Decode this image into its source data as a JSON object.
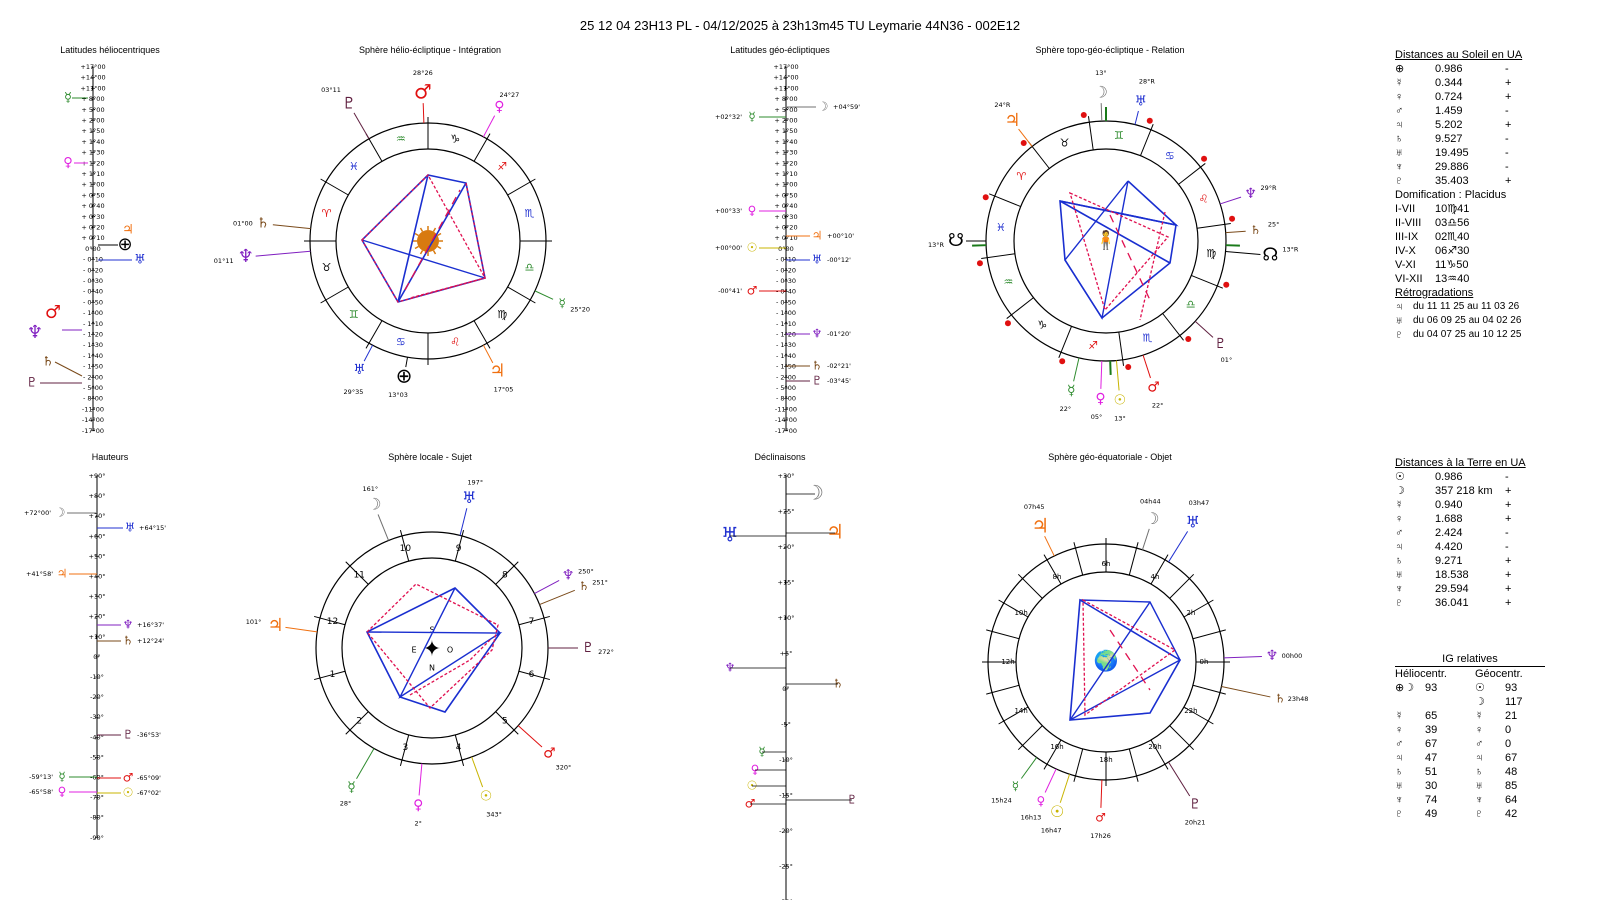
{
  "title": "25 12 04 23H13 PL   -  04/12/2025 à 23h13m45 TU  Leymarie  44N36 - 002E12",
  "panels": {
    "p1": "Latitudes héliocentriques",
    "p2": "Sphère hélio-écliptique - Intégration",
    "p3": "Latitudes géo-écliptiques",
    "p4": "Sphère topo-géo-écliptique - Relation",
    "p5": "Hauteurs",
    "p6": "Sphère locale - Sujet",
    "p7": "Déclinaisons",
    "p8": "Sphère géo-équatoriale - Objet"
  },
  "lat_scale": [
    "+17°00",
    "+14°00",
    "+11°00",
    "+ 8°00",
    "+ 5°00",
    "+ 2°00",
    "+ 1°50",
    "+ 1°40",
    "+ 1°30",
    "+ 1°20",
    "+ 1°10",
    "+ 1°00",
    "+ 0°50",
    "+ 0°40",
    "+ 0°30",
    "+ 0°20",
    "+ 0°10",
    "0°00",
    "- 0°10",
    "- 0°20",
    "- 0°30",
    "- 0°40",
    "- 0°50",
    "- 1°00",
    "- 1°10",
    "- 1°20",
    "- 1°30",
    "- 1°40",
    "- 1°50",
    "- 2°00",
    "- 5°00",
    "- 8°00",
    "-11°00",
    "-14°00",
    "-17°00"
  ],
  "haut_scale": [
    "+90°",
    "+80°",
    "+70°",
    "+60°",
    "+50°",
    "+40°",
    "+30°",
    "+20°",
    "+10°",
    "0°",
    "-10°",
    "-20°",
    "-30°",
    "-40°",
    "-50°",
    "-60°",
    "-70°",
    "-80°",
    "-90°"
  ],
  "decl_scale": [
    "+30°",
    "+25°",
    "+20°",
    "+15°",
    "+10°",
    "+5°",
    "0°",
    "-5°",
    "-10°",
    "-15°",
    "-20°",
    "-25°",
    "-30°"
  ],
  "geo_lat_labels": {
    "mercury": "+02°32'",
    "moon": "+04°59'",
    "venus": "+00°33'",
    "jupiter": "+00°10'",
    "sun": "+00°00'",
    "uranus": "-00°12'",
    "mars": "-00°41'",
    "neptune": "-01°20'",
    "saturn": "-02°21'",
    "pluto": "-03°45'"
  },
  "helio_labels": {
    "pluto": "03°11",
    "mars": "28°26",
    "venus": "24°27",
    "saturn": "01°00",
    "neptune": "01°11",
    "mercury": "25°20",
    "uranus": "29°35",
    "earth": "13°03",
    "jupiter": "17°05"
  },
  "topo_labels": {
    "moon": "13°",
    "uranus": "28°R",
    "jupiter": "24°R",
    "neptune": "29°R",
    "saturn": "25°",
    "node_s": "13°R",
    "node_n": "13°R",
    "pluto": "01°",
    "mercury": "22°",
    "venus": "05°",
    "sun": "13°",
    "mars": "22°"
  },
  "haut_labels": {
    "moon": "+72°00'",
    "uranus": "+64°15'",
    "jupiter": "+41°58'",
    "neptune": "+16°37'",
    "saturn": "+12°24'",
    "pluto": "-36°53'",
    "mercury": "-59°13'",
    "mars": "-65°09'",
    "venus": "-65°58'",
    "sun": "-67°02'"
  },
  "local_labels": {
    "moon": "161°",
    "uranus": "197°",
    "jupiter": "101°",
    "neptune": "250°",
    "saturn": "251°",
    "pluto": "272°",
    "mars": "320°",
    "mercury": "28°",
    "venus": "2°",
    "sun": "343°"
  },
  "equat_labels": {
    "jupiter": "07h45",
    "moon": "04h44",
    "uranus": "03h47",
    "neptune": "00h00",
    "saturn": "23h48",
    "mercury": "15h24",
    "venus": "16h13",
    "sun": "16h47",
    "mars": "17h26",
    "pluto": "20h21"
  },
  "compass": {
    "s": "S",
    "e": "E",
    "o": "O",
    "n": "N"
  },
  "hours_local": [
    "10",
    "9",
    "8",
    "11",
    "7",
    "12",
    "6",
    "1",
    "5",
    "2",
    "3",
    "4"
  ],
  "hours_equat": [
    "6h",
    "4h",
    "8h",
    "2h",
    "10h",
    "0h",
    "12h",
    "22h",
    "14h",
    "20h",
    "16h",
    "18h"
  ],
  "dist_sun": {
    "title": "Distances au Soleil en UA",
    "rows": [
      {
        "sym": "⊕",
        "v": "0.986",
        "s": "-"
      },
      {
        "sym": "☿",
        "v": "0.344",
        "s": "+"
      },
      {
        "sym": "♀",
        "v": "0.724",
        "s": "+"
      },
      {
        "sym": "♂",
        "v": "1.459",
        "s": "-"
      },
      {
        "sym": "♃",
        "v": "5.202",
        "s": "+"
      },
      {
        "sym": "♄",
        "v": "9.527",
        "s": "-"
      },
      {
        "sym": "♅",
        "v": "19.495",
        "s": "-"
      },
      {
        "sym": "♆",
        "v": "29.886",
        "s": "-"
      },
      {
        "sym": "♇",
        "v": "35.403",
        "s": "+"
      }
    ]
  },
  "domif": {
    "title": "Domification : Placidus",
    "rows": [
      {
        "k": "I-VII",
        "v": "10♍41"
      },
      {
        "k": "II-VIII",
        "v": "03♎56"
      },
      {
        "k": "III-IX",
        "v": "02♏40"
      },
      {
        "k": "IV-X",
        "v": "06♐30"
      },
      {
        "k": "V-XI",
        "v": "11♑50"
      },
      {
        "k": "VI-XII",
        "v": "13♒40"
      }
    ]
  },
  "retro": {
    "title": "Rétrogradations",
    "rows": [
      {
        "sym": "♃",
        "v": "du 11 11 25 au 11 03 26"
      },
      {
        "sym": "♅",
        "v": "du 06 09 25 au 04 02 26"
      },
      {
        "sym": "♇",
        "v": "du 04 07 25 au 10 12 25"
      }
    ]
  },
  "dist_earth": {
    "title": "Distances à la Terre en UA",
    "rows": [
      {
        "sym": "☉",
        "v": "0.986",
        "s": "-"
      },
      {
        "sym": "☽",
        "v": "357 218 km",
        "s": "+"
      },
      {
        "sym": "☿",
        "v": "0.940",
        "s": "+"
      },
      {
        "sym": "♀",
        "v": "1.688",
        "s": "+"
      },
      {
        "sym": "♂",
        "v": "2.424",
        "s": "-"
      },
      {
        "sym": "♃",
        "v": "4.420",
        "s": "-"
      },
      {
        "sym": "♄",
        "v": "9.271",
        "s": "+"
      },
      {
        "sym": "♅",
        "v": "18.538",
        "s": "+"
      },
      {
        "sym": "♆",
        "v": "29.594",
        "s": "+"
      },
      {
        "sym": "♇",
        "v": "36.041",
        "s": "+"
      }
    ]
  },
  "ig": {
    "title": "IG relatives",
    "col1": "Héliocentr.",
    "col2": "Géocentr.",
    "rows": [
      {
        "s1": "⊕☽",
        "v1": "93",
        "s2": "☉",
        "v2": "93"
      },
      {
        "s1": "",
        "v1": "",
        "s2": "☽",
        "v2": "117"
      },
      {
        "s1": "☿",
        "v1": "65",
        "s2": "☿",
        "v2": "21"
      },
      {
        "s1": "♀",
        "v1": "39",
        "s2": "♀",
        "v2": "0"
      },
      {
        "s1": "♂",
        "v1": "67",
        "s2": "♂",
        "v2": "0"
      },
      {
        "s1": "♃",
        "v1": "47",
        "s2": "♃",
        "v2": "67"
      },
      {
        "s1": "♄",
        "v1": "51",
        "s2": "♄",
        "v2": "48"
      },
      {
        "s1": "♅",
        "v1": "30",
        "s2": "♅",
        "v2": "85"
      },
      {
        "s1": "♆",
        "v1": "74",
        "s2": "♆",
        "v2": "64"
      },
      {
        "s1": "♇",
        "v1": "49",
        "s2": "♇",
        "v2": "42"
      }
    ]
  },
  "glyphs": {
    "sun": "☉",
    "moon": "☽",
    "mercury": "☿",
    "venus": "♀",
    "earth": "⊕",
    "mars": "♂",
    "jupiter": "♃",
    "saturn": "♄",
    "uranus": "♅",
    "neptune": "♆",
    "pluto": "♇",
    "node_n": "☊",
    "node_s": "☋",
    "aries": "♈",
    "taurus": "♉",
    "gemini": "♊",
    "cancer": "♋",
    "leo": "♌",
    "virgo": "♍",
    "libra": "♎",
    "scorpio": "♏",
    "sagittarius": "♐",
    "capricorn": "♑",
    "aquarius": "♒",
    "pisces": "♓",
    "asc": "I",
    "ic": "IV",
    "dsc": "VII",
    "mc": "X",
    "h2": "II",
    "h3": "III",
    "h5": "V",
    "h6": "VI",
    "h8": "VIII",
    "h9": "IX",
    "h11": "XI",
    "h12": "XII"
  },
  "colors": {
    "mercury": "#2e8b2e",
    "venus": "#e020e0",
    "mars": "#e01010",
    "jupiter": "#f07010",
    "saturn": "#7a4a1a",
    "uranus": "#2030d0",
    "neptune": "#8020c0",
    "pluto": "#602040",
    "sun": "#c8b400",
    "earth": "#000000",
    "moon": "#707070",
    "blue": "#1a2fd0",
    "red": "#e01050"
  }
}
